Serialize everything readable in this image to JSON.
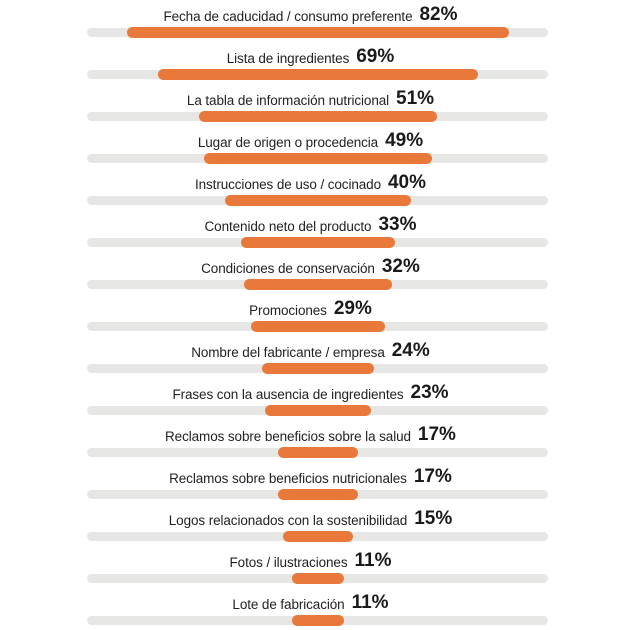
{
  "chart_data": {
    "type": "bar",
    "orientation": "horizontal-centered",
    "title": "",
    "xlabel": "",
    "ylabel": "",
    "grid": false,
    "legend": null,
    "unit": "%",
    "colors": {
      "bar": "#e8793a",
      "track": "#e6e6e4",
      "text": "#222222"
    },
    "categories": [
      "Fecha de caducidad / consumo preferente",
      "Lista de ingredientes",
      "La tabla de información nutricional",
      "Lugar de origen o procedencia",
      "Instrucciones de uso / cocinado",
      "Contenido neto del producto",
      "Condiciones de conservación",
      "Promociones",
      "Nombre del fabricante / empresa",
      "Frases con la ausencia de ingredientes",
      "Reclamos sobre beneficios sobre la salud",
      "Reclamos sobre beneficios nutricionales",
      "Logos relacionados con la sostenibilidad",
      "Fotos / ilustraciones",
      "Lote de fabricación"
    ],
    "values": [
      82,
      69,
      51,
      49,
      40,
      33,
      32,
      29,
      24,
      23,
      17,
      17,
      15,
      11,
      11
    ],
    "xlim": [
      0,
      100
    ]
  },
  "rows": [
    {
      "label": "Fecha de caducidad / consumo preferente",
      "pct": "82%",
      "value": 82
    },
    {
      "label": "Lista de ingredientes",
      "pct": "69%",
      "value": 69
    },
    {
      "label": "La tabla de información nutricional",
      "pct": "51%",
      "value": 51
    },
    {
      "label": "Lugar de origen o procedencia",
      "pct": "49%",
      "value": 49
    },
    {
      "label": "Instrucciones de uso / cocinado",
      "pct": "40%",
      "value": 40
    },
    {
      "label": "Contenido neto del producto",
      "pct": "33%",
      "value": 33
    },
    {
      "label": "Condiciones de conservación",
      "pct": "32%",
      "value": 32
    },
    {
      "label": "Promociones",
      "pct": "29%",
      "value": 29
    },
    {
      "label": "Nombre del fabricante / empresa",
      "pct": "24%",
      "value": 24
    },
    {
      "label": "Frases con la ausencia de ingredientes",
      "pct": "23%",
      "value": 23
    },
    {
      "label": "Reclamos sobre beneficios sobre la salud",
      "pct": "17%",
      "value": 17
    },
    {
      "label": "Reclamos sobre beneficios nutricionales",
      "pct": "17%",
      "value": 17
    },
    {
      "label": "Logos relacionados con la sostenibilidad",
      "pct": "15%",
      "value": 15
    },
    {
      "label": "Fotos / ilustraciones",
      "pct": "11%",
      "value": 11
    },
    {
      "label": "Lote de fabricación",
      "pct": "11%",
      "value": 11
    }
  ]
}
